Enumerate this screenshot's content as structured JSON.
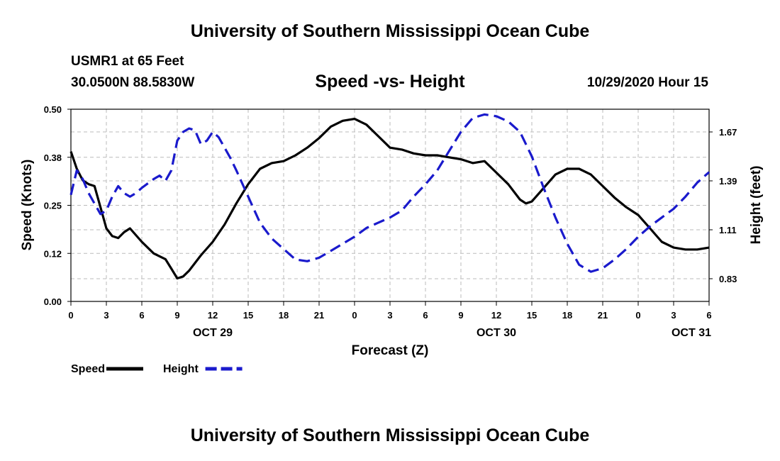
{
  "header": {
    "title_top": "University of Southern Mississippi Ocean Cube",
    "station": "USMR1 at 65 Feet",
    "coords": "30.0500N 88.5830W",
    "chart_title": "Speed -vs- Height",
    "datestamp": "10/29/2020 Hour 15",
    "title_bottom": "University of Southern Mississippi Ocean Cube"
  },
  "colors": {
    "speed": "#000000",
    "height": "#1a1acc",
    "grid": "#bbbbbb"
  },
  "chart_data": {
    "type": "line",
    "title": "Speed -vs- Height",
    "xlabel": "Forecast (Z)",
    "ylabel": "Speed (Knots)",
    "y2label": "Height (feet)",
    "xlim": [
      0,
      54
    ],
    "ylim": [
      0,
      0.5
    ],
    "y2lim": [
      0.7,
      1.8
    ],
    "x_ticks": [
      0,
      3,
      6,
      9,
      12,
      15,
      18,
      21,
      24,
      27,
      30,
      33,
      36,
      39,
      42,
      45,
      48,
      51,
      54
    ],
    "x_tick_labels": [
      "0",
      "3",
      "6",
      "9",
      "12",
      "15",
      "18",
      "21",
      "0",
      "3",
      "6",
      "9",
      "12",
      "15",
      "18",
      "21",
      "0",
      "3",
      "6"
    ],
    "date_labels": [
      {
        "x": 12,
        "label": "OCT 29"
      },
      {
        "x": 36,
        "label": "OCT 30"
      },
      {
        "x": 52.5,
        "label": "OCT 31"
      }
    ],
    "y_ticks": [
      0,
      0.125,
      0.25,
      0.375,
      0.5
    ],
    "y_tick_labels": [
      "0.00",
      "0.12",
      "0.25",
      "0.38",
      "0.50"
    ],
    "y2_ticks": [
      0.83,
      1.11,
      1.39,
      1.67
    ],
    "y2_tick_labels": [
      "0.83",
      "1.11",
      "1.39",
      "1.67"
    ],
    "grid": true,
    "series": [
      {
        "name": "Speed",
        "axis": "left",
        "style": "solid",
        "x": [
          0,
          0.5,
          1,
          1.5,
          2,
          2.5,
          3,
          3.5,
          4,
          4.5,
          5,
          6,
          7,
          8,
          8.5,
          9,
          9.5,
          10,
          11,
          12,
          13,
          14,
          15,
          16,
          17,
          18,
          19,
          20,
          21,
          22,
          23,
          24,
          25,
          26,
          27,
          28,
          29,
          30,
          31,
          32,
          33,
          34,
          35,
          36,
          37,
          38,
          38.5,
          39,
          40,
          41,
          42,
          43,
          44,
          45,
          46,
          47,
          48,
          49,
          50,
          51,
          52,
          53,
          54
        ],
        "values": [
          0.39,
          0.345,
          0.315,
          0.305,
          0.3,
          0.245,
          0.19,
          0.17,
          0.165,
          0.18,
          0.19,
          0.155,
          0.125,
          0.11,
          0.085,
          0.06,
          0.065,
          0.08,
          0.12,
          0.155,
          0.2,
          0.255,
          0.305,
          0.345,
          0.36,
          0.365,
          0.38,
          0.4,
          0.425,
          0.455,
          0.47,
          0.475,
          0.46,
          0.43,
          0.4,
          0.395,
          0.385,
          0.38,
          0.38,
          0.375,
          0.37,
          0.36,
          0.365,
          0.335,
          0.305,
          0.265,
          0.255,
          0.26,
          0.295,
          0.33,
          0.345,
          0.345,
          0.33,
          0.3,
          0.27,
          0.245,
          0.225,
          0.19,
          0.155,
          0.14,
          0.135,
          0.135,
          0.14
        ]
      },
      {
        "name": "Height",
        "axis": "right",
        "style": "dashed",
        "x": [
          0,
          0.5,
          1,
          1.5,
          2,
          2.5,
          3,
          3.5,
          4,
          4.5,
          5,
          5.5,
          6,
          7,
          7.5,
          8,
          8.5,
          9,
          9.5,
          10,
          10.5,
          11,
          11.5,
          12,
          12.5,
          13,
          13.5,
          14,
          15,
          16,
          17,
          18,
          19,
          20,
          21,
          22,
          23,
          24,
          25,
          26,
          27,
          28,
          29,
          30,
          31,
          32,
          33,
          34,
          35,
          36,
          37,
          38,
          39,
          40,
          41,
          42,
          43,
          44,
          45,
          46,
          47,
          48,
          49,
          50,
          51,
          52,
          53,
          54
        ],
        "values": [
          1.31,
          1.45,
          1.4,
          1.32,
          1.26,
          1.2,
          1.22,
          1.3,
          1.36,
          1.32,
          1.3,
          1.32,
          1.35,
          1.4,
          1.42,
          1.39,
          1.45,
          1.62,
          1.67,
          1.69,
          1.68,
          1.6,
          1.62,
          1.67,
          1.64,
          1.58,
          1.52,
          1.45,
          1.3,
          1.15,
          1.06,
          1.0,
          0.94,
          0.93,
          0.95,
          0.99,
          1.03,
          1.07,
          1.12,
          1.15,
          1.18,
          1.22,
          1.3,
          1.37,
          1.45,
          1.56,
          1.67,
          1.75,
          1.77,
          1.76,
          1.73,
          1.67,
          1.53,
          1.35,
          1.18,
          1.03,
          0.91,
          0.87,
          0.89,
          0.94,
          1.0,
          1.07,
          1.13,
          1.18,
          1.23,
          1.3,
          1.38,
          1.44
        ]
      }
    ],
    "legend": [
      {
        "label": "Speed",
        "style": "solid"
      },
      {
        "label": "Height",
        "style": "dashed"
      }
    ]
  }
}
